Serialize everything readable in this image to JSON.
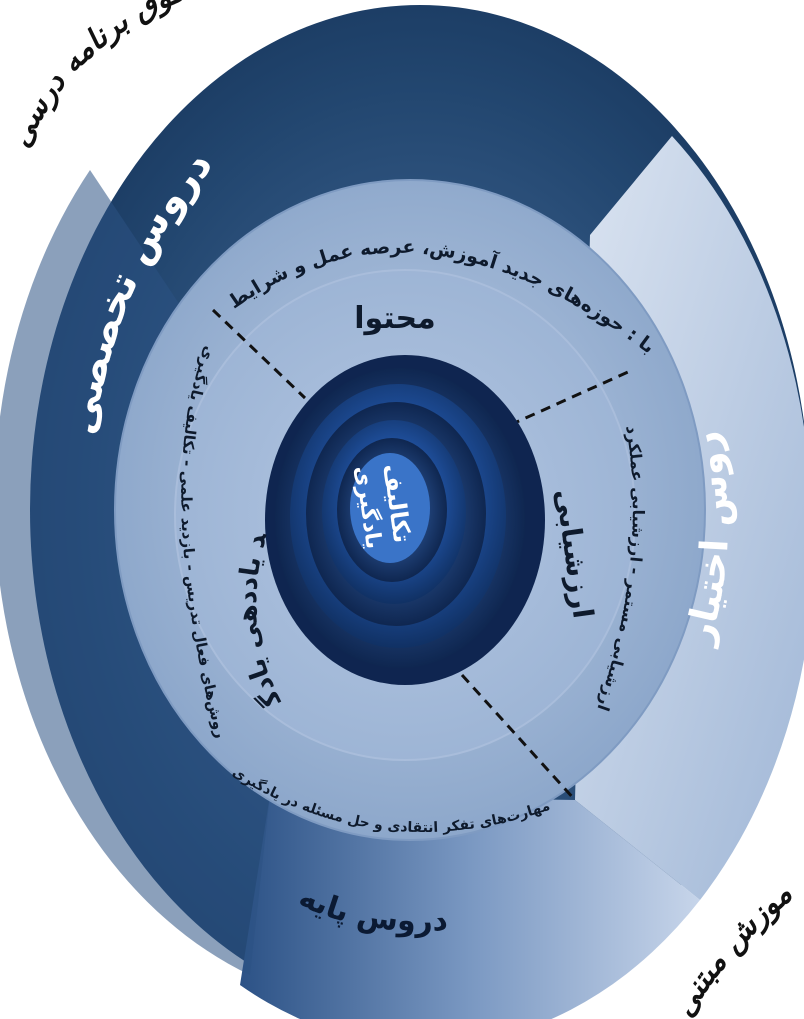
{
  "outer_notes": {
    "top_left": "فعالیت‌های فوق برنامه درسی",
    "bottom_right": "آموزش مبتنی"
  },
  "outer_segments": {
    "specialized": "دروس تخصصی",
    "elective": "دروس اختیاری",
    "basic": "دروس پایه"
  },
  "middle_ring": {
    "top_text": "مرتبط با : حوزه‌های جدید آموزش، عرصه عمل و شرایط بومی",
    "left_text": "روش‌های فعال تدریس - بازدید علمی - تکالیف یادگیری",
    "right_text": "ارزشیابی مستمر - ارزشیابی عملکرد",
    "bottom_text": "مهارت‌های تفکر انتقادی و حل مسئله در یادگیری"
  },
  "inner_sectors": {
    "content": "محتوا",
    "evaluation": "ارزشیابی",
    "process": "فرایند یاددهی یادگیری"
  },
  "core": {
    "line1": "تکالیف",
    "line2": "یادگیری"
  },
  "colors": {
    "dark_navy": "#1d3d68",
    "mid_blue": "#2f5588",
    "pale_blue": "#b2c6e0",
    "ring_blue": "#8aa5c9",
    "inner_blue": "#9bb3d4",
    "core_blue": "#1f4f9c"
  }
}
